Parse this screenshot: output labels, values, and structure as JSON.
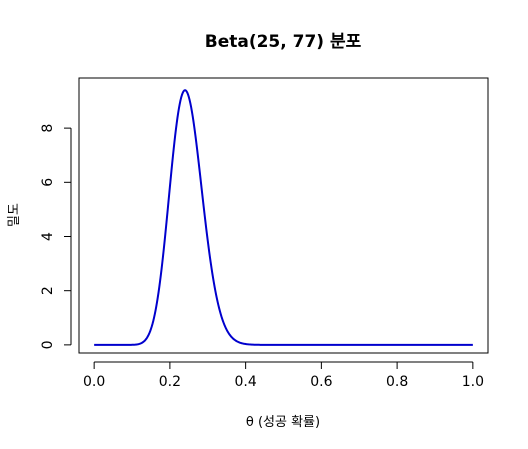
{
  "chart_data": {
    "type": "line",
    "title": "Beta(25, 77) 분포",
    "xlabel": "θ (성공 확률)",
    "ylabel": "밀도",
    "xlim": [
      -0.04,
      1.04
    ],
    "ylim": [
      -0.3,
      9.85
    ],
    "x_ticks": [
      0.0,
      0.2,
      0.4,
      0.6,
      0.8,
      1.0
    ],
    "x_tick_labels": [
      "0.0",
      "0.2",
      "0.4",
      "0.6",
      "0.8",
      "1.0"
    ],
    "y_ticks": [
      0,
      2,
      4,
      6,
      8
    ],
    "y_tick_labels": [
      "0",
      "2",
      "4",
      "6",
      "8"
    ],
    "grid": false,
    "legend": "none",
    "series": [
      {
        "distribution": "beta",
        "alpha": 25,
        "beta": 77,
        "x_start": 0.0,
        "x_end": 1.0,
        "color": "#0000CD"
      }
    ]
  }
}
